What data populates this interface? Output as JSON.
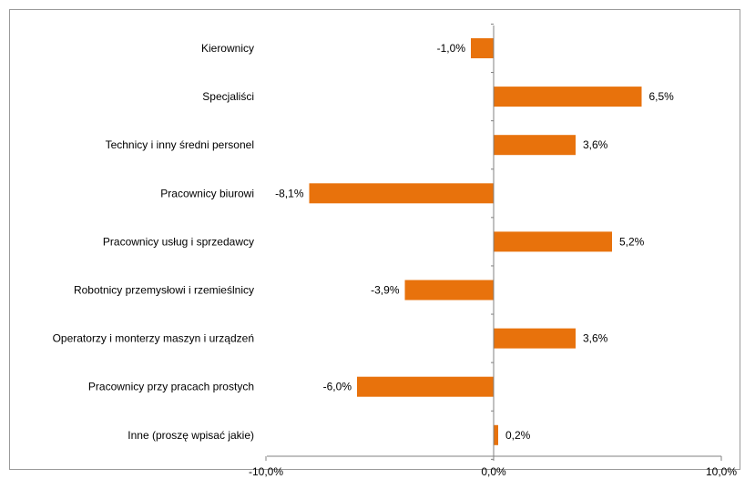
{
  "chart_data": {
    "type": "bar",
    "orientation": "horizontal",
    "categories": [
      "Kierownicy",
      "Specjaliści",
      "Technicy i inny średni personel",
      "Pracownicy biurowi",
      "Pracownicy usług i sprzedawcy",
      "Robotnicy przemysłowi i rzemieślnicy",
      "Operatorzy i monterzy maszyn i urządzeń",
      "Pracownicy przy pracach prostych",
      "Inne (proszę wpisać jakie)"
    ],
    "values": [
      -1.0,
      6.5,
      3.6,
      -8.1,
      5.2,
      -3.9,
      3.6,
      -6.0,
      0.2
    ],
    "value_labels": [
      "-1,0%",
      "6,5%",
      "3,6%",
      "-8,1%",
      "5,2%",
      "-3,9%",
      "3,6%",
      "-6,0%",
      "0,2%"
    ],
    "xlim": [
      -10,
      10
    ],
    "xticks": [
      -10,
      0,
      10
    ],
    "xtick_labels": [
      "-10,0%",
      "0,0%",
      "10,0%"
    ],
    "bar_color": "#E8720C",
    "grid": false,
    "legend": "none"
  }
}
